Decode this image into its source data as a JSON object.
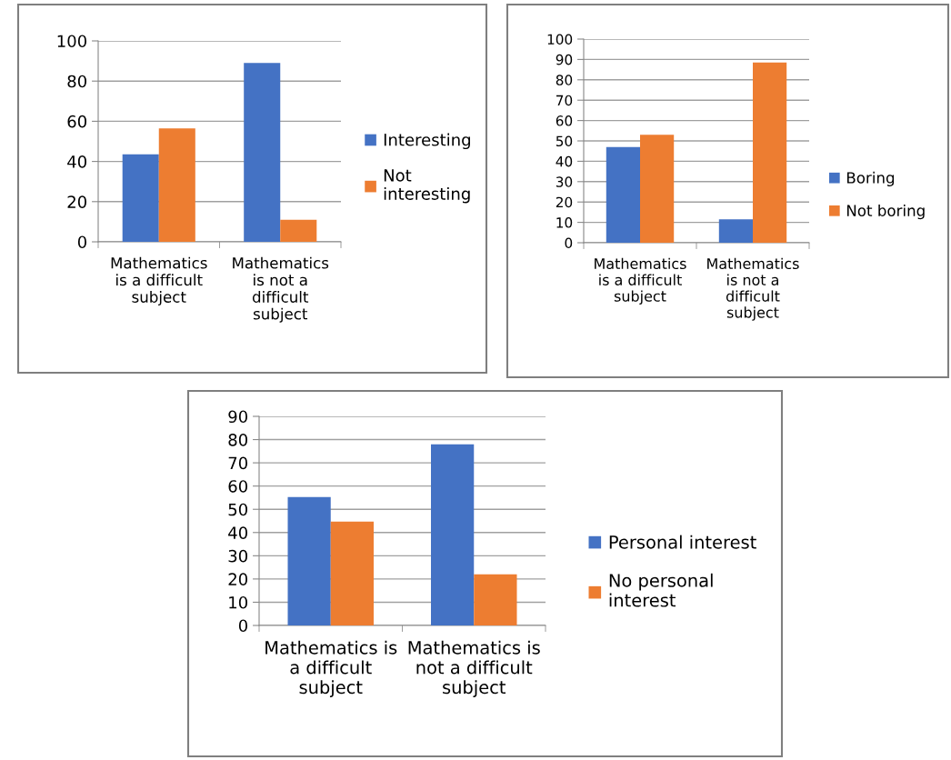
{
  "chart_data": [
    {
      "type": "bar",
      "categories": [
        "Mathematics\nis a difficult\nsubject",
        "Mathematics\nis not a\ndifficult\nsubject"
      ],
      "series": [
        {
          "name": "Interesting",
          "color": "#4472c4",
          "values": [
            43.5,
            89
          ]
        },
        {
          "name": "Not\ninteresting",
          "color": "#ed7d31",
          "values": [
            56.5,
            11
          ]
        }
      ],
      "ylim": [
        0,
        100
      ],
      "yticks": [
        0,
        20,
        40,
        60,
        80,
        100
      ],
      "grid": "y",
      "legend": "right"
    },
    {
      "type": "bar",
      "categories": [
        "Mathematics\nis a difficult\nsubject",
        "Mathematics\nis not a\ndifficult\nsubject"
      ],
      "series": [
        {
          "name": "Boring",
          "color": "#4472c4",
          "values": [
            47,
            11.5
          ]
        },
        {
          "name": "Not boring",
          "color": "#ed7d31",
          "values": [
            53,
            88.5
          ]
        }
      ],
      "ylim": [
        0,
        100
      ],
      "yticks": [
        0,
        10,
        20,
        30,
        40,
        50,
        60,
        70,
        80,
        90,
        100
      ],
      "grid": "y",
      "legend": "right"
    },
    {
      "type": "bar",
      "categories": [
        "Mathematics is\na difficult\nsubject",
        "Mathematics is\nnot a difficult\nsubject"
      ],
      "series": [
        {
          "name": "Personal interest",
          "color": "#4472c4",
          "values": [
            55.3,
            78
          ]
        },
        {
          "name": "No personal\ninterest",
          "color": "#ed7d31",
          "values": [
            44.7,
            22
          ]
        }
      ],
      "ylim": [
        0,
        90
      ],
      "yticks": [
        0,
        10,
        20,
        30,
        40,
        50,
        60,
        70,
        80,
        90
      ],
      "grid": "y",
      "legend": "right"
    }
  ]
}
